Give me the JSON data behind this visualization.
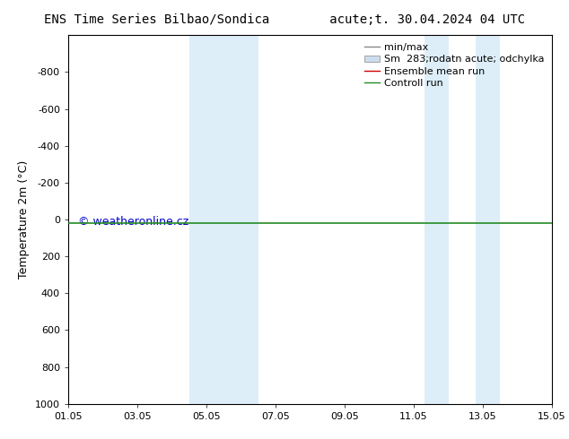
{
  "title": "ENS Time Series Bilbao/Sondica        acute;t. 30.04.2024 04 UTC",
  "ylabel": "Temperature 2m (°C)",
  "ylim_top": 1000,
  "ylim_bottom": -1000,
  "yticks": [
    -800,
    -600,
    -400,
    -200,
    0,
    200,
    400,
    600,
    800,
    1000
  ],
  "xlim": [
    0,
    14
  ],
  "xtick_positions": [
    0,
    2,
    4,
    6,
    8,
    10,
    12,
    14
  ],
  "xtick_labels": [
    "01.05",
    "03.05",
    "05.05",
    "07.05",
    "09.05",
    "11.05",
    "13.05",
    "15.05"
  ],
  "shade_bands": [
    {
      "xmin": 3.5,
      "xmax": 4.0
    },
    {
      "xmin": 4.0,
      "xmax": 5.5
    },
    {
      "xmin": 10.3,
      "xmax": 11.0
    },
    {
      "xmin": 11.8,
      "xmax": 12.5
    }
  ],
  "shade_color": "#ddeef8",
  "control_run_y": 18,
  "control_run_color": "#228B22",
  "ensemble_mean_color": "#cc0000",
  "minmax_color": "#888888",
  "spread_color": "#ccdded",
  "legend_labels": [
    "min/max",
    "Sm  283;rodatn acute; odchylka",
    "Ensemble mean run",
    "Controll run"
  ],
  "watermark": "© weatheronline.cz",
  "watermark_color": "#0000cc",
  "background_color": "#ffffff",
  "font_size_title": 10,
  "font_size_axis": 9,
  "font_size_tick": 8,
  "font_size_legend": 8,
  "font_size_watermark": 9
}
